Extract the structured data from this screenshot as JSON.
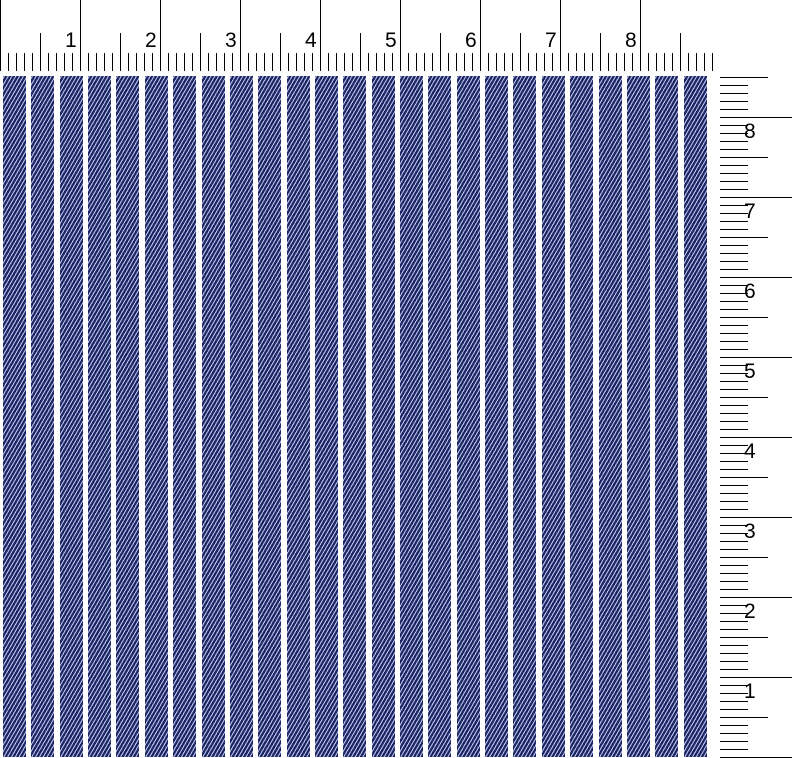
{
  "top_ruler": {
    "labels": [
      "1",
      "2",
      "3",
      "4",
      "5",
      "6",
      "7",
      "8"
    ]
  },
  "side_ruler": {
    "labels": [
      "8",
      "7",
      "6",
      "5",
      "4",
      "3",
      "2",
      "1"
    ]
  },
  "fabric": {
    "pattern": "navy pinstripe twill",
    "stripe_color": "#1c2566",
    "ground_color": "#ffffff",
    "stripe_count": 25
  }
}
